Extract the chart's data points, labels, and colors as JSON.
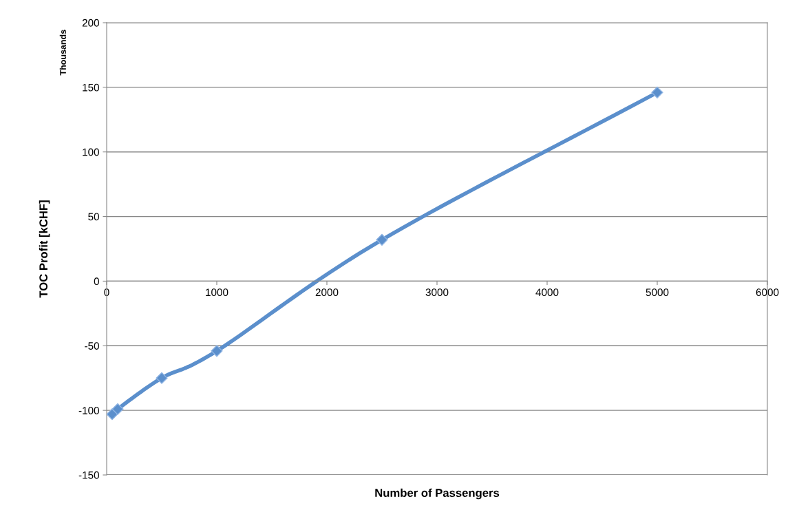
{
  "chart_data": {
    "type": "line",
    "xlabel": "Number of Passengers",
    "ylabel": "TOC Profit [kCHF]",
    "annotations": [
      "Thousands"
    ],
    "x": [
      50,
      100,
      500,
      1000,
      2500,
      5000
    ],
    "series": [
      {
        "color": "#5b8fcc",
        "values": [
          -103,
          -99,
          -75,
          -54,
          32,
          146
        ]
      }
    ],
    "xlim": [
      0,
      6000
    ],
    "xticks": [
      0,
      1000,
      2000,
      3000,
      4000,
      5000,
      6000
    ],
    "ylim": [
      -150,
      200
    ],
    "yticks": [
      -150,
      -100,
      -50,
      0,
      50,
      100,
      150,
      200
    ],
    "grid": "y",
    "marker": "diamond",
    "line_style": "solid",
    "legend": false
  }
}
